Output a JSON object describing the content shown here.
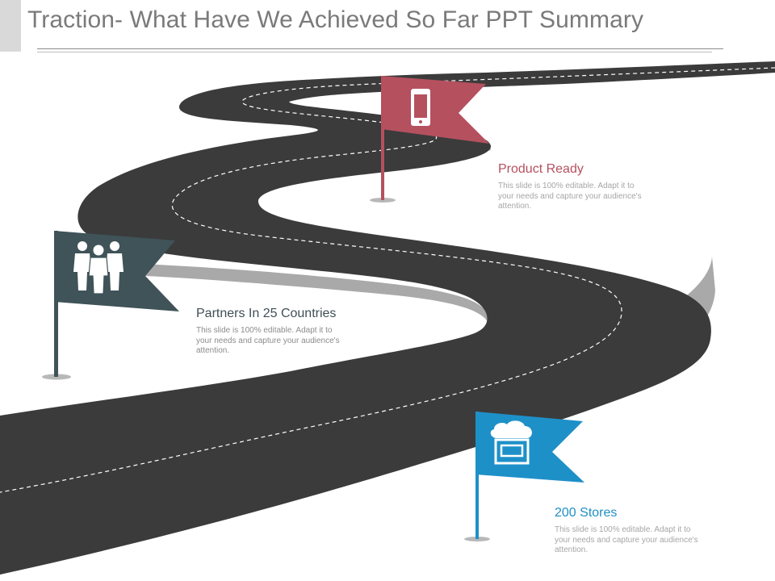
{
  "slide": {
    "title": "Traction- What Have We Achieved So Far PPT Summary"
  },
  "colors": {
    "road": "#3b3b3b",
    "road_shadow": "#a6a6a6",
    "lane_marking": "#ffffff",
    "product_flag": "#b5505f",
    "partners_flag": "#3f5358",
    "stores_flag": "#1e90c8",
    "title_text": "#7a7a7a",
    "body_text": "#a6a6a6"
  },
  "milestones": [
    {
      "key": "product",
      "title": "Product Ready",
      "description": "This slide is 100% editable. Adapt it to your needs and capture your audience's attention.",
      "icon": "smartphone-icon"
    },
    {
      "key": "partners",
      "title": "Partners In 25 Countries",
      "description": "This slide is 100% editable. Adapt it to your needs and capture your audience's attention.",
      "icon": "business-people-icon"
    },
    {
      "key": "stores",
      "title": "200 Stores",
      "description": "This slide is 100% editable. Adapt it to your needs and capture your audience's attention.",
      "icon": "storefront-icon"
    }
  ]
}
